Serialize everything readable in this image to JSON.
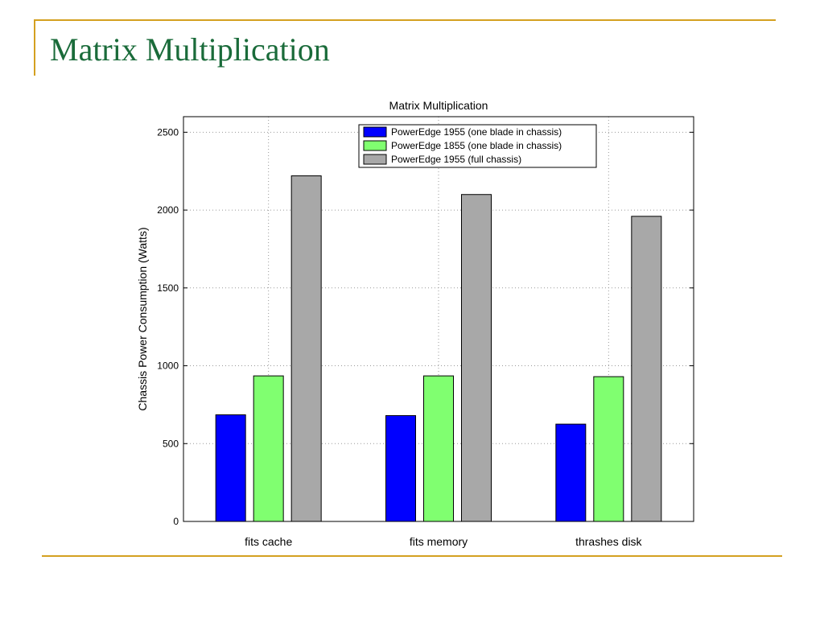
{
  "slide": {
    "title": "Matrix Multiplication",
    "accent_color": "#d4a020",
    "title_color": "#1a6b3a"
  },
  "chart_data": {
    "type": "bar",
    "title": "Matrix Multiplication",
    "xlabel": "",
    "ylabel": "Chassis Power Consumption (Watts)",
    "categories": [
      "fits cache",
      "fits memory",
      "thrashes disk"
    ],
    "series": [
      {
        "name": "PowerEdge 1955 (one blade in chassis)",
        "color": "#0000ff",
        "values": [
          685,
          680,
          625
        ]
      },
      {
        "name": "PowerEdge 1855 (one blade in chassis)",
        "color": "#80ff70",
        "values": [
          935,
          935,
          930
        ]
      },
      {
        "name": "PowerEdge 1955 (full chassis)",
        "color": "#a8a8a8",
        "values": [
          2220,
          2100,
          1960
        ]
      }
    ],
    "ylim": [
      0,
      2600
    ],
    "yticks": [
      0,
      500,
      1000,
      1500,
      2000,
      2500
    ],
    "grid": true,
    "legend_position": "top-right"
  }
}
